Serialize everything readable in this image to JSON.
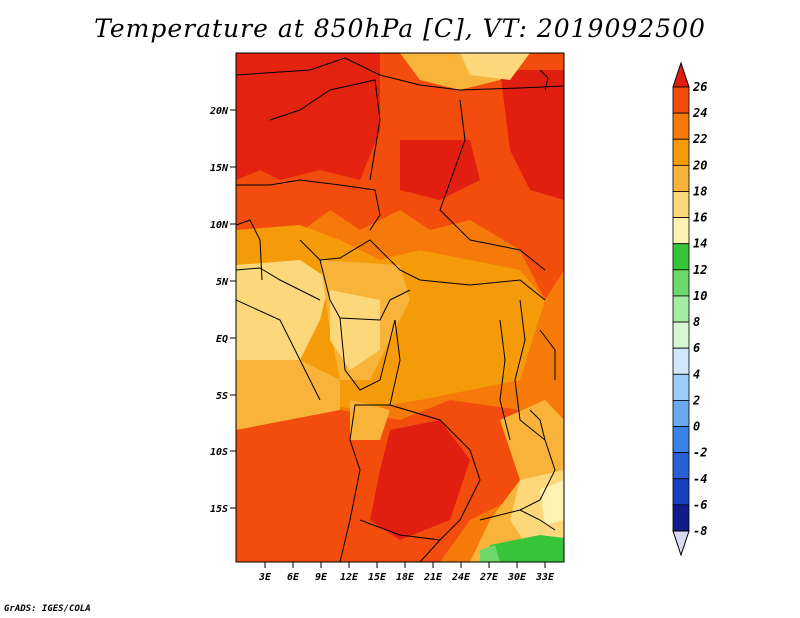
{
  "title": "Temperature at 850hPa [C], VT: 2019092500",
  "credit": "GrADS: IGES/COLA",
  "map": {
    "lat_ticks": [
      "20N",
      "15N",
      "10N",
      "5N",
      "EQ",
      "5S",
      "10S",
      "15S"
    ],
    "lon_ticks": [
      "3E",
      "6E",
      "9E",
      "12E",
      "15E",
      "18E",
      "21E",
      "24E",
      "27E",
      "30E",
      "33E"
    ]
  },
  "colorbar": {
    "labels": [
      "26",
      "24",
      "22",
      "20",
      "18",
      "16",
      "14",
      "12",
      "10",
      "8",
      "6",
      "4",
      "2",
      "0",
      "-2",
      "-4",
      "-6",
      "-8"
    ],
    "colors": [
      "#e11f10",
      "#f24d0c",
      "#f57a0a",
      "#f59a08",
      "#f8b43a",
      "#fcd87a",
      "#fcf2b4",
      "#37c439",
      "#6fd86a",
      "#a6eca0",
      "#d7f6d3",
      "#cfe9fb",
      "#9dcdf6",
      "#6aa9ee",
      "#3b82e6",
      "#2860d6",
      "#1a3fbf",
      "#0f1c8a",
      "#07085e"
    ],
    "top_color": "#e11f10",
    "bottom_color": "#d9d9f2"
  }
}
